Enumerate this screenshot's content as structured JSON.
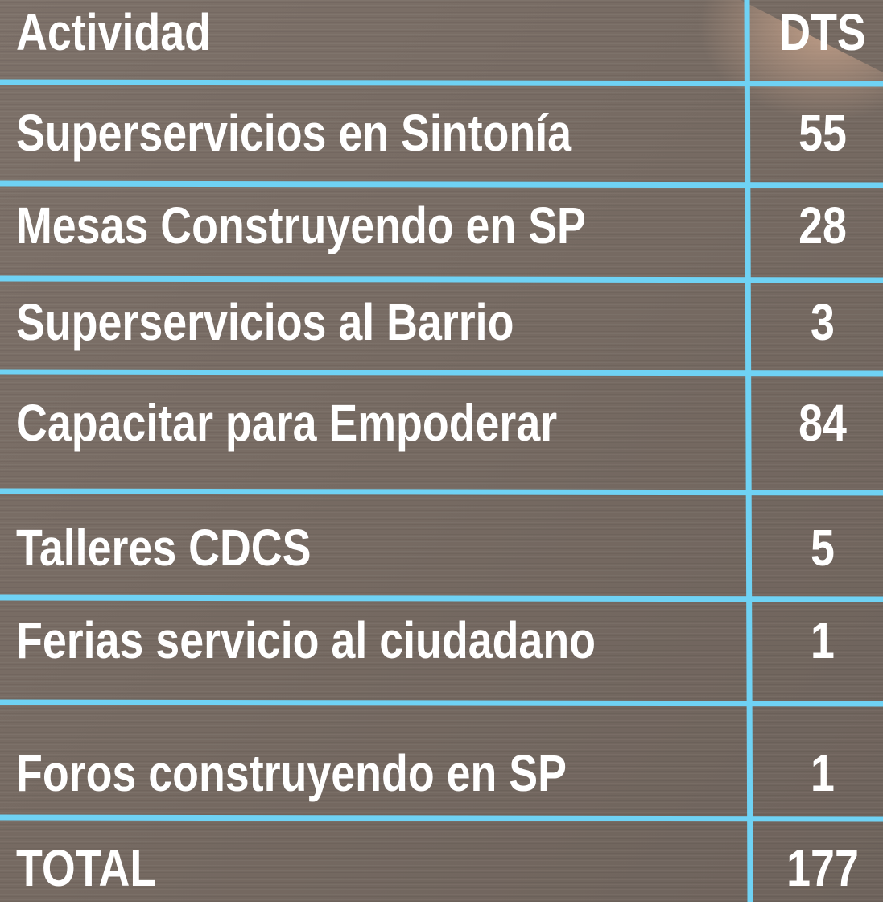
{
  "table": {
    "header": [
      "Actividad",
      "DTS"
    ],
    "rows": [
      [
        "Superservicios en Sintonía",
        55
      ],
      [
        "Mesas Construyendo en SP",
        28
      ],
      [
        "Superservicios al Barrio",
        3
      ],
      [
        "Capacitar para Empoderar",
        84
      ],
      [
        "Talleres CDCS",
        5
      ],
      [
        "Ferias servicio al ciudadano",
        1
      ],
      [
        "Foros construyendo en SP",
        1
      ]
    ],
    "total": [
      "TOTAL",
      177
    ]
  }
}
